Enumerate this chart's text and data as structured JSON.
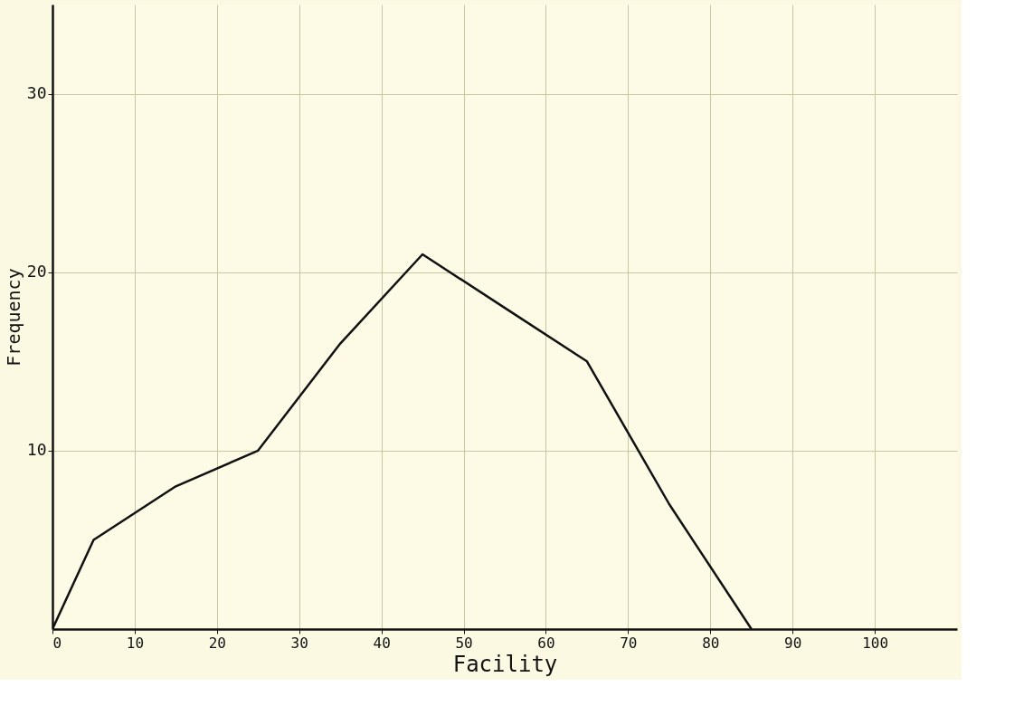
{
  "chart_data": {
    "type": "line",
    "xlabel": "Facility",
    "ylabel": "Frequency",
    "x": [
      0,
      5,
      15,
      25,
      35,
      45,
      55,
      65,
      75,
      85
    ],
    "series": [
      {
        "color": "#111111",
        "values": [
          0,
          5,
          8,
          10,
          16,
          21,
          18,
          15,
          7,
          0
        ]
      }
    ],
    "xlim": [
      0,
      110
    ],
    "ylim": [
      0,
      35
    ],
    "xticks": [
      0,
      10,
      20,
      30,
      40,
      50,
      60,
      70,
      80,
      90,
      100
    ],
    "yticks": [
      10,
      20,
      30
    ],
    "grid": true,
    "legend": false,
    "marker": "none",
    "line_style": "solid"
  }
}
